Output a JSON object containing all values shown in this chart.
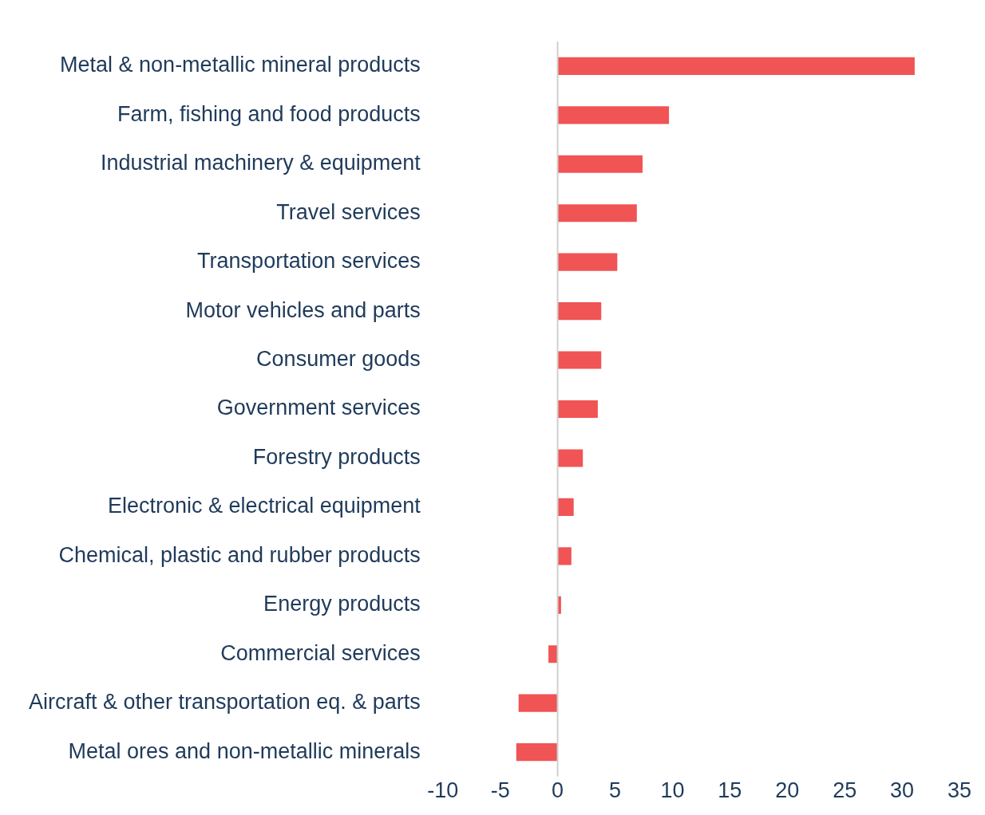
{
  "chart_data": {
    "type": "bar",
    "orientation": "horizontal",
    "categories": [
      "Metal & non-metallic mineral products",
      "Farm, fishing and food products",
      "Industrial machinery & equipment",
      "Travel services",
      "Transportation services",
      "Motor vehicles and parts",
      "Consumer goods",
      "Government services",
      "Forestry products",
      "Electronic & electrical equipment",
      "Chemical, plastic and rubber products",
      "Energy products",
      "Commercial services",
      "Aircraft & other transportation eq. & parts",
      "Metal ores and non-metallic minerals"
    ],
    "values": [
      31.1,
      9.7,
      7.4,
      6.9,
      5.2,
      3.8,
      3.8,
      3.5,
      2.2,
      1.4,
      1.2,
      0.3,
      -0.8,
      -3.4,
      -3.6
    ],
    "color": "#f05454",
    "xlim": [
      -10,
      35
    ],
    "xticks": [
      -10,
      -5,
      0,
      5,
      10,
      15,
      20,
      25,
      30,
      35
    ],
    "grid": false,
    "ref_lines": [
      {
        "axis": "x",
        "value": 0,
        "color": "#d0d0d0"
      }
    ]
  }
}
